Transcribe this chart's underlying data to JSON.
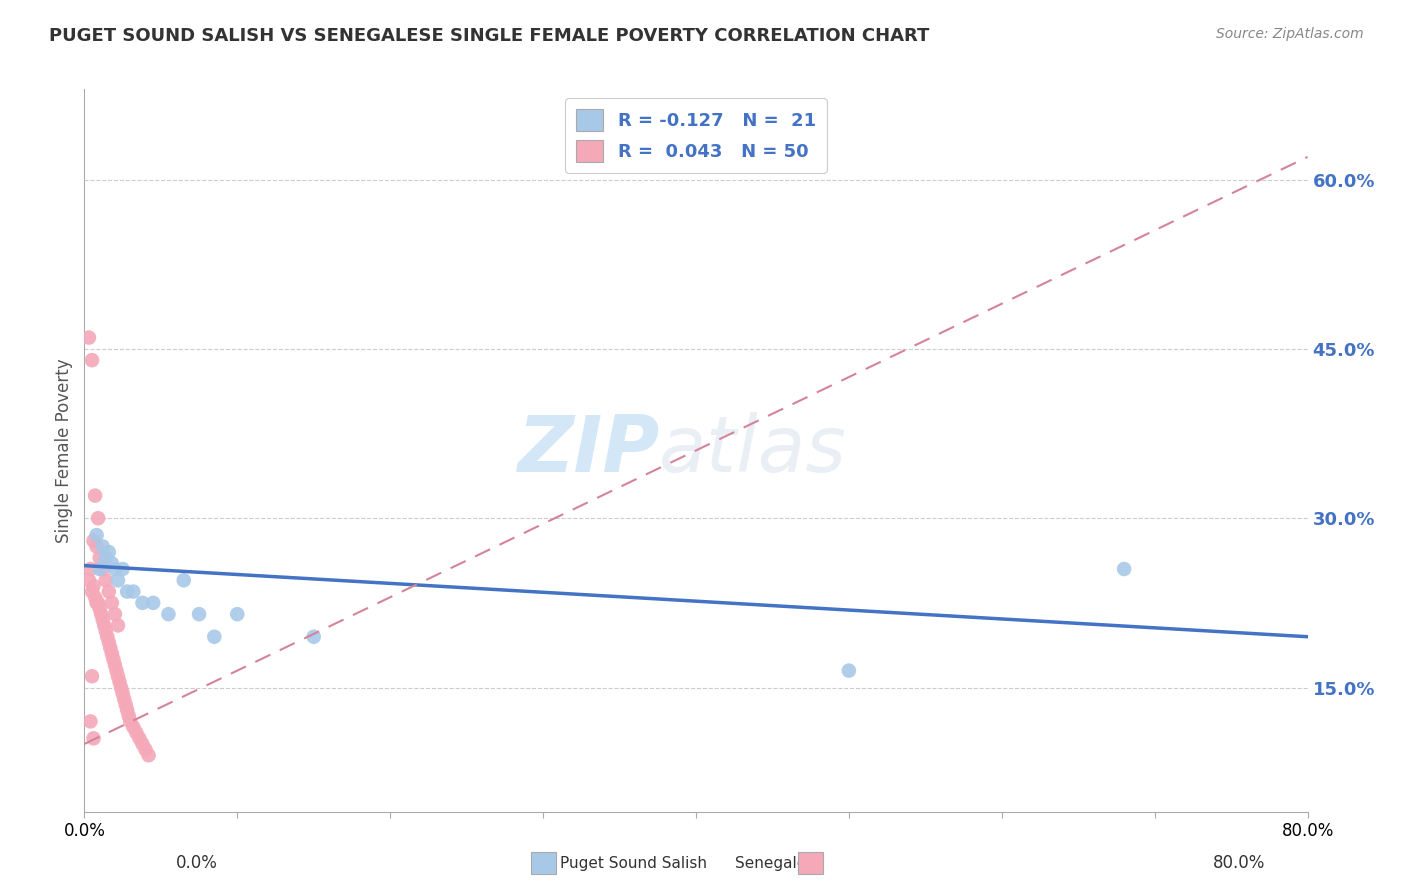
{
  "title": "PUGET SOUND SALISH VS SENEGALESE SINGLE FEMALE POVERTY CORRELATION CHART",
  "source": "Source: ZipAtlas.com",
  "ylabel": "Single Female Poverty",
  "watermark_zip": "ZIP",
  "watermark_atlas": "atlas",
  "xlim": [
    0.0,
    0.8
  ],
  "ylim": [
    0.04,
    0.68
  ],
  "yticks": [
    0.15,
    0.3,
    0.45,
    0.6
  ],
  "ytick_labels": [
    "15.0%",
    "30.0%",
    "45.0%",
    "60.0%"
  ],
  "color_salish": "#a8c8e8",
  "color_senegalese": "#f4a8b8",
  "line_color_salish": "#4472c4",
  "line_color_senegalese": "#d4849a",
  "background_color": "#ffffff",
  "title_color": "#333333",
  "source_color": "#888888",
  "grid_color": "#cccccc",
  "salish_x": [
    0.008,
    0.01,
    0.012,
    0.014,
    0.016,
    0.018,
    0.02,
    0.022,
    0.025,
    0.028,
    0.032,
    0.038,
    0.045,
    0.055,
    0.065,
    0.075,
    0.085,
    0.1,
    0.15,
    0.5,
    0.68
  ],
  "salish_y": [
    0.285,
    0.255,
    0.275,
    0.265,
    0.27,
    0.26,
    0.255,
    0.245,
    0.255,
    0.235,
    0.235,
    0.225,
    0.225,
    0.215,
    0.245,
    0.215,
    0.195,
    0.215,
    0.195,
    0.165,
    0.255
  ],
  "senegalese_x": [
    0.003,
    0.004,
    0.005,
    0.006,
    0.007,
    0.008,
    0.009,
    0.01,
    0.011,
    0.012,
    0.013,
    0.014,
    0.015,
    0.016,
    0.017,
    0.018,
    0.019,
    0.02,
    0.021,
    0.022,
    0.023,
    0.024,
    0.025,
    0.026,
    0.027,
    0.028,
    0.029,
    0.03,
    0.032,
    0.034,
    0.036,
    0.038,
    0.04,
    0.042,
    0.006,
    0.008,
    0.01,
    0.012,
    0.014,
    0.016,
    0.018,
    0.02,
    0.022,
    0.003,
    0.005,
    0.007,
    0.009,
    0.005,
    0.004,
    0.006
  ],
  "senegalese_y": [
    0.245,
    0.255,
    0.235,
    0.24,
    0.23,
    0.225,
    0.225,
    0.22,
    0.215,
    0.21,
    0.205,
    0.2,
    0.195,
    0.19,
    0.185,
    0.18,
    0.175,
    0.17,
    0.165,
    0.16,
    0.155,
    0.15,
    0.145,
    0.14,
    0.135,
    0.13,
    0.125,
    0.12,
    0.115,
    0.11,
    0.105,
    0.1,
    0.095,
    0.09,
    0.28,
    0.275,
    0.265,
    0.255,
    0.245,
    0.235,
    0.225,
    0.215,
    0.205,
    0.46,
    0.44,
    0.32,
    0.3,
    0.16,
    0.12,
    0.105
  ],
  "salish_line_x": [
    0.0,
    0.8
  ],
  "salish_line_y": [
    0.258,
    0.195
  ],
  "senegalese_line_x": [
    0.0,
    0.8
  ],
  "senegalese_line_y": [
    0.1,
    0.62
  ]
}
